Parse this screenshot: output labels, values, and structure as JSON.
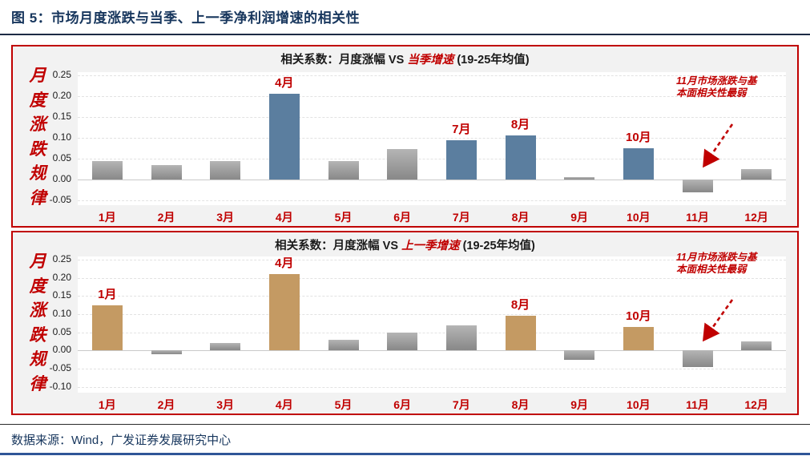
{
  "figure": {
    "title": "图 5：市场月度涨跌与当季、上一季净利润增速的相关性",
    "source": "数据来源：Wind，广发证券发展研究中心",
    "side_label": "月度涨跌规律"
  },
  "colors": {
    "accent_red": "#c00000",
    "navy_title": "#17365d",
    "highlight_blue": "#5b7e9f",
    "highlight_gold": "#c49a63",
    "gray_bar_top": "#b5b5b5",
    "gray_bar_bottom": "#888888",
    "panel_bg": "#f2f2f2",
    "plot_bg": "#ffffff",
    "footer_bar": "#2f5597"
  },
  "chart_data": [
    {
      "type": "bar",
      "title": {
        "prefix": "相关系数：月度涨幅 VS ",
        "highlight": "当季增速",
        "suffix": " (19-25年均值)"
      },
      "side_label_chars": [
        "月",
        "度",
        "涨",
        "跌",
        "规",
        "律"
      ],
      "categories": [
        "1月",
        "2月",
        "3月",
        "4月",
        "5月",
        "6月",
        "7月",
        "8月",
        "9月",
        "10月",
        "11月",
        "12月"
      ],
      "values": [
        0.045,
        0.035,
        0.045,
        0.205,
        0.045,
        0.073,
        0.095,
        0.105,
        0.005,
        0.075,
        -0.03,
        0.025
      ],
      "highlighted_categories": [
        "4月",
        "7月",
        "8月",
        "10月"
      ],
      "highlight_color": "#5b7e9f",
      "yticks": [
        0.25,
        0.2,
        0.15,
        0.1,
        0.05,
        0.0,
        -0.05
      ],
      "ylim": [
        -0.05,
        0.25
      ],
      "grid": true,
      "legend": "none",
      "annotation_lines": [
        "11月市场涨跌与基",
        "本面相关性最弱"
      ],
      "annotation_target": "11月"
    },
    {
      "type": "bar",
      "title": {
        "prefix": "相关系数：月度涨幅 VS ",
        "highlight": "上一季增速",
        "suffix": " (19-25年均值)"
      },
      "side_label_chars": [
        "月",
        "度",
        "涨",
        "跌",
        "规",
        "律"
      ],
      "categories": [
        "1月",
        "2月",
        "3月",
        "4月",
        "5月",
        "6月",
        "7月",
        "8月",
        "9月",
        "10月",
        "11月",
        "12月"
      ],
      "values": [
        0.125,
        -0.01,
        0.02,
        0.21,
        0.03,
        0.05,
        0.07,
        0.095,
        -0.025,
        0.065,
        -0.045,
        0.025
      ],
      "highlighted_categories": [
        "1月",
        "4月",
        "8月",
        "10月"
      ],
      "highlight_color": "#c49a63",
      "yticks": [
        0.25,
        0.2,
        0.15,
        0.1,
        0.05,
        0.0,
        -0.05,
        -0.1
      ],
      "ylim": [
        -0.1,
        0.25
      ],
      "grid": true,
      "legend": "none",
      "annotation_lines": [
        "11月市场涨跌与基",
        "本面相关性最弱"
      ],
      "annotation_target": "11月"
    }
  ]
}
